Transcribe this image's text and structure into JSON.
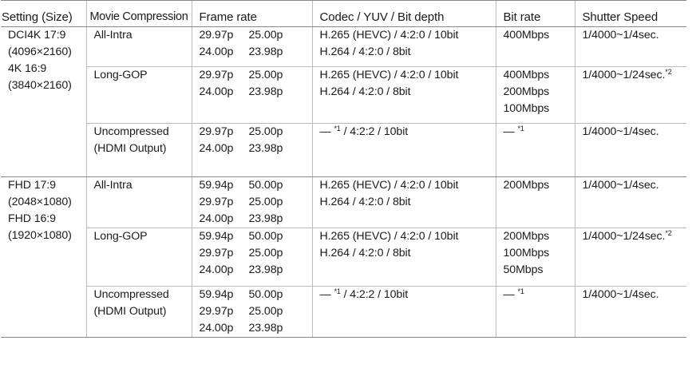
{
  "headers": {
    "setting_size": "Setting (Size)",
    "movie_compression": "Movie Compression",
    "frame_rate": "Frame rate",
    "codec": "Codec / YUV / Bit depth",
    "bit_rate": "Bit rate",
    "shutter_speed": "Shutter Speed"
  },
  "groups": [
    {
      "size_lines": [
        "DCI4K 17:9",
        "(4096×2160)",
        "4K 16:9",
        "(3840×2160)"
      ],
      "rows": [
        {
          "compression": [
            "All-Intra"
          ],
          "frame_rates": [
            [
              "29.97p",
              "25.00p"
            ],
            [
              "24.00p",
              "23.98p"
            ]
          ],
          "codec": [
            {
              "text": "H.265 (HEVC) / 4:2:0 / 10bit"
            },
            {
              "text": "H.264 / 4:2:0 / 8bit"
            }
          ],
          "bitrate": [
            {
              "text": "400Mbps"
            }
          ],
          "shutter": {
            "text": "1/4000~1/4sec."
          }
        },
        {
          "compression": [
            "Long-GOP"
          ],
          "frame_rates": [
            [
              "29.97p",
              "25.00p"
            ],
            [
              "24.00p",
              "23.98p"
            ]
          ],
          "codec": [
            {
              "text": "H.265 (HEVC) / 4:2:0 / 10bit"
            },
            {
              "text": "H.264 / 4:2:0 / 8bit"
            }
          ],
          "bitrate": [
            {
              "text": "400Mbps"
            },
            {
              "text": "200Mbps"
            },
            {
              "text": "100Mbps"
            }
          ],
          "shutter": {
            "text": "1/4000~1/24sec.",
            "fn": "*2"
          }
        },
        {
          "compression": [
            "Uncompressed",
            "(HDMI Output)"
          ],
          "frame_rates": [
            [
              "29.97p",
              "25.00p"
            ],
            [
              "24.00p",
              "23.98p"
            ]
          ],
          "codec": [
            {
              "text": "— ",
              "fn": "*1",
              "after": " / 4:2:2 / 10bit"
            }
          ],
          "bitrate": [
            {
              "text": "— ",
              "fn": "*1"
            }
          ],
          "shutter": {
            "text": "1/4000~1/4sec."
          }
        }
      ]
    },
    {
      "size_lines": [
        "FHD 17:9",
        "(2048×1080)",
        "FHD 16:9",
        "(1920×1080)"
      ],
      "rows": [
        {
          "compression": [
            "All-Intra"
          ],
          "frame_rates": [
            [
              "59.94p",
              "50.00p"
            ],
            [
              "29.97p",
              "25.00p"
            ],
            [
              "24.00p",
              "23.98p"
            ]
          ],
          "codec": [
            {
              "text": "H.265 (HEVC) / 4:2:0 / 10bit"
            },
            {
              "text": "H.264 / 4:2:0 / 8bit"
            }
          ],
          "bitrate": [
            {
              "text": "200Mbps"
            }
          ],
          "shutter": {
            "text": "1/4000~1/4sec."
          }
        },
        {
          "compression": [
            "Long-GOP"
          ],
          "frame_rates": [
            [
              "59.94p",
              "50.00p"
            ],
            [
              "29.97p",
              "25.00p"
            ],
            [
              "24.00p",
              "23.98p"
            ]
          ],
          "codec": [
            {
              "text": "H.265 (HEVC) / 4:2:0 / 10bit"
            },
            {
              "text": "H.264 / 4:2:0 / 8bit"
            }
          ],
          "bitrate": [
            {
              "text": "200Mbps"
            },
            {
              "text": "100Mbps"
            },
            {
              "text": "50Mbps"
            }
          ],
          "shutter": {
            "text": "1/4000~1/24sec.",
            "fn": "*2"
          }
        },
        {
          "compression": [
            "Uncompressed",
            "(HDMI Output)"
          ],
          "frame_rates": [
            [
              "59.94p",
              "50.00p"
            ],
            [
              "29.97p",
              "25.00p"
            ],
            [
              "24.00p",
              "23.98p"
            ]
          ],
          "codec": [
            {
              "text": "— ",
              "fn": "*1",
              "after": " / 4:2:2 / 10bit"
            }
          ],
          "bitrate": [
            {
              "text": "— ",
              "fn": "*1"
            }
          ],
          "shutter": {
            "text": "1/4000~1/4sec."
          }
        }
      ]
    }
  ]
}
